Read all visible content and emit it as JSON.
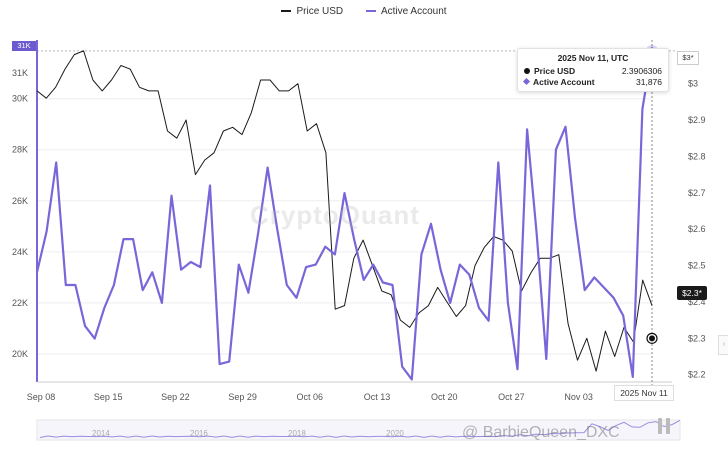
{
  "legend": {
    "price_label": "Price USD",
    "account_label": "Active Account"
  },
  "colors": {
    "price": "#1a1a1a",
    "account": "#7a66d9"
  },
  "tooltip": {
    "title": "2025 Nov 11, UTC",
    "price_label": "Price USD",
    "price_value": "2.3906306",
    "account_label": "Active Account",
    "account_value": "31,876"
  },
  "crosshair_date": "2025 Nov 11",
  "price_marker": "$2.3*",
  "account_marker": "31K",
  "price_top_marker": "$3*",
  "watermark": "CryptoQuant",
  "credit": "@ BarbieQueen_DXC",
  "side_tab_icon": "chevron-left-icon",
  "navigator_years": [
    "2014",
    "2016",
    "2018",
    "2020"
  ],
  "chart_data": {
    "type": "line",
    "title": "",
    "x_tick_labels": [
      "Sep 08",
      "Sep 15",
      "Sep 22",
      "Sep 29",
      "Oct 06",
      "Oct 13",
      "Oct 20",
      "Oct 27",
      "Nov 03"
    ],
    "left_axis": {
      "label": "Active Account",
      "ticks": [
        "20K",
        "22K",
        "24K",
        "26K",
        "28K",
        "30K",
        "31K"
      ],
      "range": [
        18900,
        32300
      ]
    },
    "right_axis": {
      "label": "Price USD",
      "ticks": [
        "$2.2",
        "$2.3",
        "$2.4",
        "$2.5",
        "$2.6",
        "$2.7",
        "$2.8",
        "$2.9",
        "$3"
      ],
      "range": [
        2.18,
        3.12
      ]
    },
    "series": [
      {
        "name": "Price USD",
        "axis": "right",
        "values": [
          2.98,
          2.96,
          2.99,
          3.04,
          3.08,
          3.09,
          3.01,
          2.98,
          3.01,
          3.05,
          3.04,
          2.99,
          2.98,
          2.98,
          2.87,
          2.85,
          2.9,
          2.75,
          2.79,
          2.81,
          2.87,
          2.88,
          2.86,
          2.92,
          3.01,
          3.01,
          2.98,
          2.98,
          3.0,
          2.87,
          2.89,
          2.81,
          2.38,
          2.39,
          2.52,
          2.57,
          2.5,
          2.43,
          2.42,
          2.35,
          2.33,
          2.37,
          2.39,
          2.44,
          2.4,
          2.36,
          2.39,
          2.5,
          2.55,
          2.58,
          2.57,
          2.54,
          2.43,
          2.48,
          2.52,
          2.52,
          2.53,
          2.34,
          2.24,
          2.3,
          2.21,
          2.32,
          2.25,
          2.33,
          2.29,
          2.46,
          2.39
        ]
      },
      {
        "name": "Active Account",
        "axis": "left",
        "values": [
          23200,
          24800,
          27500,
          22700,
          22700,
          21100,
          20600,
          21800,
          22700,
          24500,
          24500,
          22500,
          23200,
          22000,
          26200,
          23300,
          23600,
          23400,
          26600,
          19600,
          19700,
          23500,
          22400,
          24700,
          27300,
          24900,
          22700,
          22200,
          23400,
          23500,
          24200,
          23900,
          26300,
          24500,
          22900,
          23500,
          22800,
          22700,
          19500,
          19000,
          23900,
          25100,
          23300,
          22000,
          23500,
          23100,
          21800,
          21300,
          27500,
          22000,
          19400,
          28800,
          24700,
          19800,
          28000,
          28900,
          25300,
          22500,
          23000,
          22600,
          22200,
          21500,
          19100,
          29600,
          31876
        ]
      }
    ]
  }
}
